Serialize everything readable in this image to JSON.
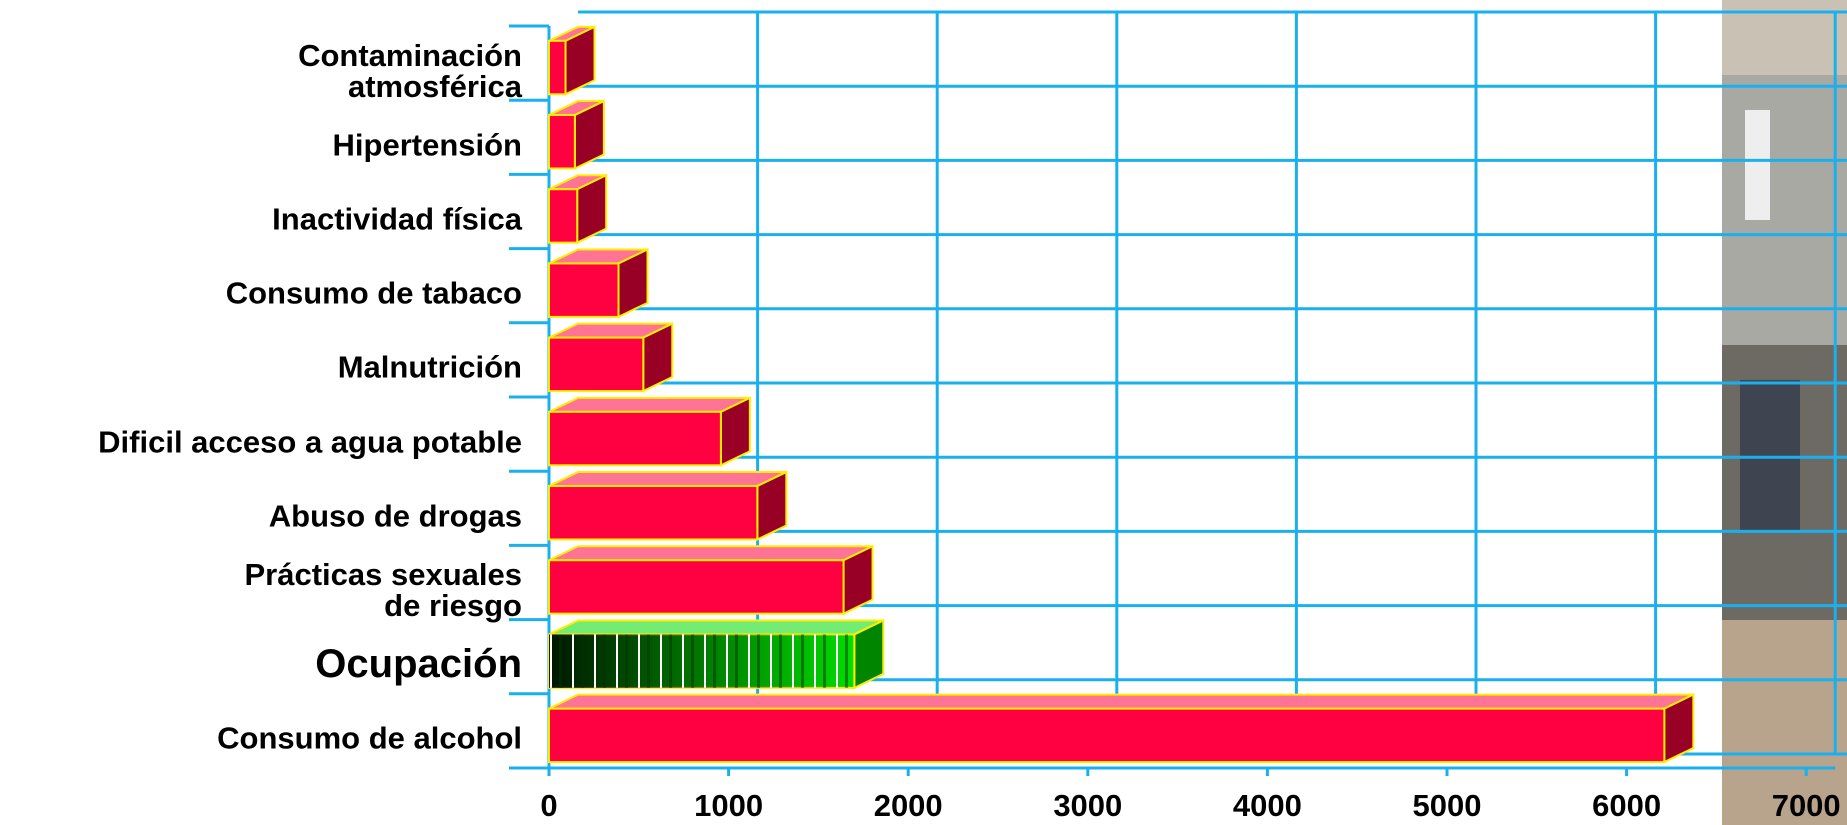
{
  "chart_data": {
    "type": "bar3d-horizontal",
    "categories": [
      "Contaminación\natmosférica",
      "Hipertensión",
      "Inactividad física",
      "Consumo de tabaco",
      "Malnutrición",
      "Dificil acceso a agua potable",
      "Abuso de drogas",
      "Prácticas sexuales\nde riesgo",
      "Ocupación",
      "Consumo de alcohol"
    ],
    "values": [
      92,
      144,
      157,
      387,
      525,
      957,
      1160,
      1640,
      1700,
      6210
    ],
    "colors": [
      "#ff0040",
      "#ff0040",
      "#ff0040",
      "#ff0040",
      "#ff0040",
      "#ff0040",
      "#ff0040",
      "#ff0040",
      "#00dd00",
      "#ff0040"
    ],
    "xlim": [
      0,
      7000
    ],
    "xticks": [
      0,
      1000,
      2000,
      3000,
      4000,
      5000,
      6000,
      7000
    ],
    "grid": true
  }
}
